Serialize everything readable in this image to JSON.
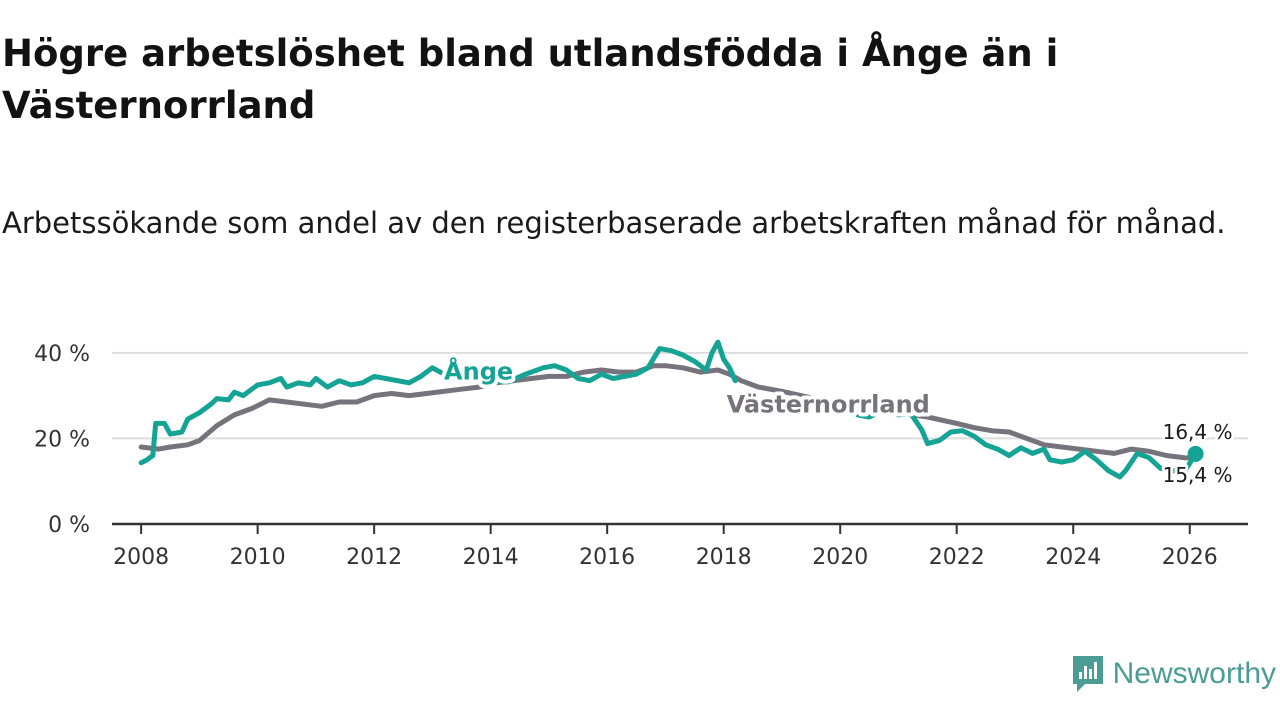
{
  "title": "Högre arbetslöshet bland utlandsfödda i Ånge än i Västernorrland",
  "subtitle": "Arbetssökande som andel av den registerbaserade arbetskraften månad för månad.",
  "brand": {
    "name": "Newsworthy",
    "color": "#4a9c94"
  },
  "colors": {
    "ange": "#14a394",
    "vasternorrland": "#76737c",
    "grid": "#dddddd",
    "axis": "#333333"
  },
  "chart_data": {
    "type": "line",
    "title": "Högre arbetslöshet bland utlandsfödda i Ånge än i Västernorrland",
    "xlabel": "",
    "ylabel": "",
    "xlim": [
      2007.5,
      2027.0
    ],
    "ylim": [
      0,
      43
    ],
    "x_ticks": [
      2008,
      2010,
      2012,
      2014,
      2016,
      2018,
      2020,
      2022,
      2024,
      2026
    ],
    "x_tick_labels": [
      "2008",
      "2010",
      "2012",
      "2014",
      "2016",
      "2018",
      "2020",
      "2022",
      "2024",
      "2026"
    ],
    "y_ticks": [
      0,
      20,
      40
    ],
    "y_tick_labels": [
      "0 %",
      "20 %",
      "40 %"
    ],
    "grid": true,
    "series": [
      {
        "name": "Ånge",
        "label": "Ånge",
        "color": "#14a394",
        "end_label": "16,4 %",
        "points": [
          [
            2008.0,
            14.3
          ],
          [
            2008.1,
            15.0
          ],
          [
            2008.2,
            16.0
          ],
          [
            2008.25,
            23.5
          ],
          [
            2008.4,
            23.5
          ],
          [
            2008.5,
            21.0
          ],
          [
            2008.7,
            21.5
          ],
          [
            2008.8,
            24.5
          ],
          [
            2009.0,
            26.0
          ],
          [
            2009.2,
            28.0
          ],
          [
            2009.3,
            29.3
          ],
          [
            2009.5,
            29.0
          ],
          [
            2009.6,
            30.8
          ],
          [
            2009.75,
            30.0
          ],
          [
            2010.0,
            32.5
          ],
          [
            2010.2,
            33.0
          ],
          [
            2010.4,
            34.0
          ],
          [
            2010.5,
            32.0
          ],
          [
            2010.7,
            33.0
          ],
          [
            2010.9,
            32.5
          ],
          [
            2011.0,
            34.0
          ],
          [
            2011.2,
            32.0
          ],
          [
            2011.4,
            33.5
          ],
          [
            2011.6,
            32.5
          ],
          [
            2011.8,
            33.0
          ],
          [
            2012.0,
            34.5
          ],
          [
            2012.2,
            34.0
          ],
          [
            2012.4,
            33.5
          ],
          [
            2012.6,
            33.0
          ],
          [
            2012.8,
            34.5
          ],
          [
            2013.0,
            36.5
          ],
          [
            2013.2,
            35.0
          ],
          [
            2013.4,
            36.0
          ],
          [
            2013.6,
            34.8
          ],
          [
            2013.8,
            33.5
          ],
          [
            2014.0,
            33.5
          ],
          [
            2014.3,
            33.2
          ],
          [
            2014.6,
            35.0
          ],
          [
            2014.9,
            36.5
          ],
          [
            2015.1,
            37.0
          ],
          [
            2015.3,
            36.0
          ],
          [
            2015.5,
            34.0
          ],
          [
            2015.7,
            33.5
          ],
          [
            2015.9,
            35.0
          ],
          [
            2016.1,
            34.0
          ],
          [
            2016.3,
            34.5
          ],
          [
            2016.5,
            35.0
          ],
          [
            2016.7,
            36.5
          ],
          [
            2016.9,
            41.0
          ],
          [
            2017.1,
            40.5
          ],
          [
            2017.3,
            39.5
          ],
          [
            2017.5,
            38.0
          ],
          [
            2017.7,
            36.0
          ],
          [
            2017.8,
            40.0
          ],
          [
            2017.9,
            42.5
          ],
          [
            2018.0,
            38.5
          ],
          [
            2018.1,
            36.5
          ],
          [
            2018.2,
            33.5
          ],
          [
            2020.3,
            25.5
          ],
          [
            2020.5,
            25.0
          ],
          [
            2020.8,
            27.0
          ],
          [
            2021.0,
            25.5
          ],
          [
            2021.2,
            26.0
          ],
          [
            2021.4,
            22.0
          ],
          [
            2021.5,
            18.8
          ],
          [
            2021.7,
            19.5
          ],
          [
            2021.9,
            21.5
          ],
          [
            2022.1,
            21.8
          ],
          [
            2022.3,
            20.5
          ],
          [
            2022.5,
            18.5
          ],
          [
            2022.7,
            17.5
          ],
          [
            2022.9,
            16.0
          ],
          [
            2023.1,
            17.8
          ],
          [
            2023.3,
            16.5
          ],
          [
            2023.5,
            17.5
          ],
          [
            2023.6,
            15.0
          ],
          [
            2023.8,
            14.5
          ],
          [
            2024.0,
            15.0
          ],
          [
            2024.2,
            17.0
          ],
          [
            2024.4,
            15.0
          ],
          [
            2024.6,
            12.5
          ],
          [
            2024.8,
            11.0
          ],
          [
            2024.9,
            12.5
          ],
          [
            2025.1,
            16.5
          ],
          [
            2025.3,
            15.5
          ],
          [
            2025.5,
            13.0
          ],
          [
            2025.7,
            12.5
          ],
          [
            2025.9,
            12.0
          ],
          [
            2026.1,
            16.4
          ]
        ]
      },
      {
        "name": "Västernorrland",
        "label": "Västernorrland",
        "color": "#76737c",
        "end_label": "15,4 %",
        "points": [
          [
            2008.0,
            18.0
          ],
          [
            2008.3,
            17.5
          ],
          [
            2008.5,
            18.0
          ],
          [
            2008.8,
            18.5
          ],
          [
            2009.0,
            19.5
          ],
          [
            2009.3,
            23.0
          ],
          [
            2009.6,
            25.5
          ],
          [
            2009.9,
            27.0
          ],
          [
            2010.2,
            29.0
          ],
          [
            2010.5,
            28.5
          ],
          [
            2010.8,
            28.0
          ],
          [
            2011.1,
            27.5
          ],
          [
            2011.4,
            28.5
          ],
          [
            2011.7,
            28.5
          ],
          [
            2012.0,
            30.0
          ],
          [
            2012.3,
            30.5
          ],
          [
            2012.6,
            30.0
          ],
          [
            2012.9,
            30.5
          ],
          [
            2013.2,
            31.0
          ],
          [
            2013.5,
            31.5
          ],
          [
            2013.8,
            32.0
          ],
          [
            2014.1,
            33.0
          ],
          [
            2014.4,
            33.5
          ],
          [
            2014.7,
            34.0
          ],
          [
            2015.0,
            34.5
          ],
          [
            2015.3,
            34.5
          ],
          [
            2015.6,
            35.5
          ],
          [
            2015.9,
            36.0
          ],
          [
            2016.2,
            35.5
          ],
          [
            2016.5,
            35.5
          ],
          [
            2016.8,
            37.0
          ],
          [
            2017.0,
            37.0
          ],
          [
            2017.3,
            36.5
          ],
          [
            2017.6,
            35.5
          ],
          [
            2017.9,
            36.0
          ],
          [
            2018.1,
            35.0
          ],
          [
            2018.3,
            33.5
          ],
          [
            2018.6,
            32.0
          ],
          [
            2019.0,
            31.0
          ],
          [
            2019.5,
            29.5
          ],
          [
            2020.0,
            28.0
          ],
          [
            2020.5,
            27.5
          ],
          [
            2021.0,
            26.0
          ],
          [
            2021.5,
            25.0
          ],
          [
            2022.0,
            23.5
          ],
          [
            2022.3,
            22.5
          ],
          [
            2022.6,
            21.8
          ],
          [
            2022.9,
            21.5
          ],
          [
            2023.2,
            20.0
          ],
          [
            2023.5,
            18.5
          ],
          [
            2023.8,
            18.0
          ],
          [
            2024.1,
            17.5
          ],
          [
            2024.4,
            17.0
          ],
          [
            2024.7,
            16.5
          ],
          [
            2025.0,
            17.5
          ],
          [
            2025.3,
            17.0
          ],
          [
            2025.6,
            16.0
          ],
          [
            2025.9,
            15.5
          ],
          [
            2026.1,
            15.4
          ]
        ]
      }
    ]
  }
}
